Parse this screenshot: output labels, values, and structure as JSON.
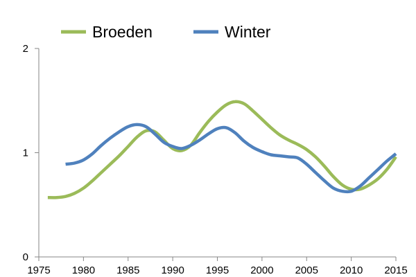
{
  "chart_data": {
    "type": "line",
    "title": "",
    "xlabel": "",
    "ylabel": "",
    "xlim": [
      1975,
      2015
    ],
    "ylim": [
      0,
      2
    ],
    "x_ticks": [
      1975,
      1980,
      1985,
      1990,
      1995,
      2000,
      2005,
      2010,
      2015
    ],
    "y_ticks": [
      0,
      1,
      2
    ],
    "grid": false,
    "legend_position": "top",
    "series": [
      {
        "name": "Broeden",
        "color": "#9bbb59",
        "x": [
          1976,
          1977,
          1978,
          1979,
          1980,
          1981,
          1982,
          1983,
          1984,
          1985,
          1986,
          1987,
          1988,
          1989,
          1990,
          1991,
          1992,
          1993,
          1994,
          1995,
          1996,
          1997,
          1998,
          1999,
          2000,
          2001,
          2002,
          2003,
          2004,
          2005,
          2006,
          2007,
          2008,
          2009,
          2010,
          2011,
          2012,
          2013,
          2014,
          2015
        ],
        "values": [
          0.57,
          0.57,
          0.58,
          0.61,
          0.66,
          0.73,
          0.81,
          0.89,
          0.97,
          1.06,
          1.15,
          1.21,
          1.2,
          1.12,
          1.04,
          1.02,
          1.07,
          1.19,
          1.3,
          1.39,
          1.46,
          1.49,
          1.47,
          1.4,
          1.32,
          1.24,
          1.17,
          1.12,
          1.08,
          1.03,
          0.96,
          0.87,
          0.77,
          0.69,
          0.65,
          0.65,
          0.69,
          0.75,
          0.84,
          0.96
        ]
      },
      {
        "name": "Winter",
        "color": "#4f81bd",
        "x": [
          1978,
          1979,
          1980,
          1981,
          1982,
          1983,
          1984,
          1985,
          1986,
          1987,
          1988,
          1989,
          1990,
          1991,
          1992,
          1993,
          1994,
          1995,
          1996,
          1997,
          1998,
          1999,
          2000,
          2001,
          2002,
          2003,
          2004,
          2005,
          2006,
          2007,
          2008,
          2009,
          2010,
          2011,
          2012,
          2013,
          2014,
          2015
        ],
        "values": [
          0.89,
          0.9,
          0.93,
          0.99,
          1.07,
          1.14,
          1.2,
          1.25,
          1.27,
          1.25,
          1.18,
          1.1,
          1.06,
          1.04,
          1.07,
          1.12,
          1.18,
          1.23,
          1.24,
          1.19,
          1.11,
          1.05,
          1.01,
          0.98,
          0.97,
          0.96,
          0.95,
          0.89,
          0.81,
          0.73,
          0.66,
          0.63,
          0.63,
          0.68,
          0.76,
          0.84,
          0.92,
          0.99
        ]
      }
    ]
  }
}
